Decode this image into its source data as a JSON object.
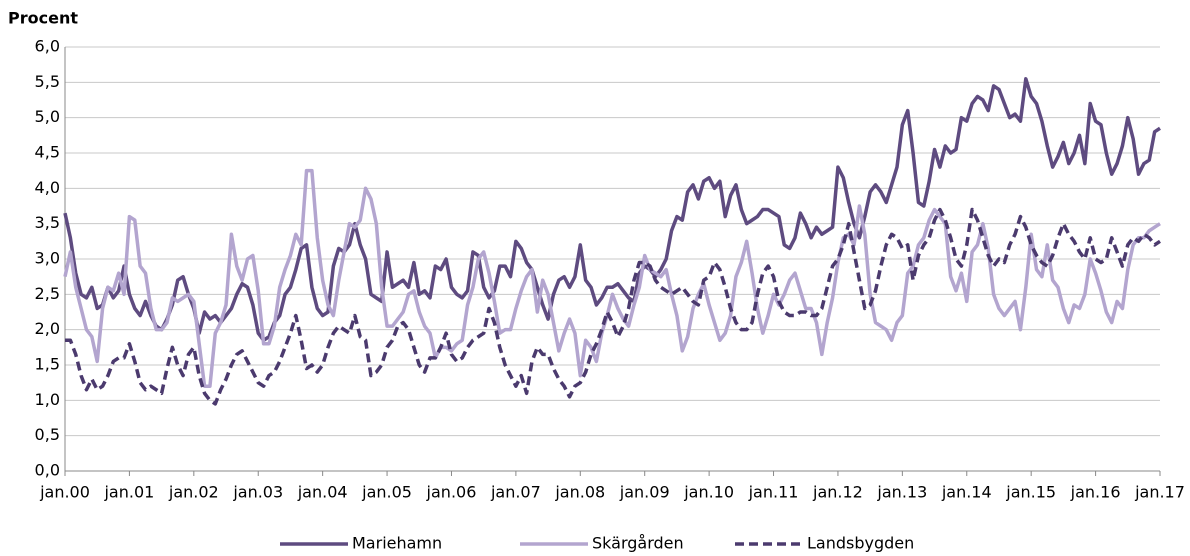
{
  "chart_data": {
    "type": "line",
    "y_axis_label": "Procent",
    "categories": [
      "jan.00",
      null,
      null,
      null,
      null,
      null,
      null,
      null,
      null,
      null,
      null,
      null,
      "jan.01",
      null,
      null,
      null,
      null,
      null,
      null,
      null,
      null,
      null,
      null,
      null,
      "jan.02",
      null,
      null,
      null,
      null,
      null,
      null,
      null,
      null,
      null,
      null,
      null,
      "jan.03",
      null,
      null,
      null,
      null,
      null,
      null,
      null,
      null,
      null,
      null,
      null,
      "jan.04",
      null,
      null,
      null,
      null,
      null,
      null,
      null,
      null,
      null,
      null,
      null,
      "jan.05",
      null,
      null,
      null,
      null,
      null,
      null,
      null,
      null,
      null,
      null,
      null,
      "jan.06",
      null,
      null,
      null,
      null,
      null,
      null,
      null,
      null,
      null,
      null,
      null,
      "jan.07",
      null,
      null,
      null,
      null,
      null,
      null,
      null,
      null,
      null,
      null,
      null,
      "jan.08",
      null,
      null,
      null,
      null,
      null,
      null,
      null,
      null,
      null,
      null,
      null,
      "jan.09",
      null,
      null,
      null,
      null,
      null,
      null,
      null,
      null,
      null,
      null,
      null,
      "jan.10",
      null,
      null,
      null,
      null,
      null,
      null,
      null,
      null,
      null,
      null,
      null,
      "jan.11",
      null,
      null,
      null,
      null,
      null,
      null,
      null,
      null,
      null,
      null,
      null,
      "jan.12",
      null,
      null,
      null,
      null,
      null,
      null,
      null,
      null,
      null,
      null,
      null,
      "jan.13",
      null,
      null,
      null,
      null,
      null,
      null,
      null,
      null,
      null,
      null,
      null,
      "jan.14",
      null,
      null,
      null,
      null,
      null,
      null,
      null,
      null,
      null,
      null,
      null,
      "jan.15",
      null,
      null,
      null,
      null,
      null,
      null,
      null,
      null,
      null,
      null,
      null,
      "jan.16",
      null,
      null,
      null,
      null,
      null,
      null,
      null,
      null,
      null,
      null,
      null,
      "jan.17"
    ],
    "series": [
      {
        "name": "Mariehamn",
        "color": "#5e4b80",
        "line_style": "solid",
        "values": [
          3.65,
          3.3,
          2.8,
          2.5,
          2.45,
          2.6,
          2.3,
          2.35,
          2.6,
          2.45,
          2.55,
          2.9,
          2.5,
          2.3,
          2.2,
          2.4,
          2.2,
          2.05,
          2.0,
          2.15,
          2.35,
          2.7,
          2.75,
          2.5,
          2.3,
          1.95,
          2.25,
          2.15,
          2.2,
          2.1,
          2.2,
          2.3,
          2.5,
          2.65,
          2.6,
          2.35,
          1.95,
          1.85,
          1.9,
          2.1,
          2.2,
          2.5,
          2.6,
          2.85,
          3.15,
          3.2,
          2.6,
          2.3,
          2.2,
          2.25,
          2.9,
          3.15,
          3.1,
          3.2,
          3.5,
          3.2,
          3.0,
          2.5,
          2.45,
          2.4,
          3.1,
          2.6,
          2.65,
          2.7,
          2.6,
          2.95,
          2.5,
          2.55,
          2.45,
          2.9,
          2.85,
          3.0,
          2.6,
          2.5,
          2.45,
          2.55,
          3.1,
          3.05,
          2.6,
          2.45,
          2.55,
          2.9,
          2.9,
          2.75,
          3.25,
          3.15,
          2.95,
          2.85,
          2.6,
          2.35,
          2.15,
          2.5,
          2.7,
          2.75,
          2.6,
          2.75,
          3.2,
          2.7,
          2.6,
          2.35,
          2.45,
          2.6,
          2.6,
          2.65,
          2.55,
          2.45,
          2.4,
          2.8,
          2.9,
          2.85,
          2.75,
          2.85,
          3.0,
          3.4,
          3.6,
          3.55,
          3.95,
          4.05,
          3.85,
          4.1,
          4.15,
          4.0,
          4.1,
          3.6,
          3.9,
          4.05,
          3.7,
          3.5,
          3.55,
          3.6,
          3.7,
          3.7,
          3.65,
          3.6,
          3.2,
          3.15,
          3.3,
          3.65,
          3.5,
          3.3,
          3.45,
          3.35,
          3.4,
          3.45,
          4.3,
          4.15,
          3.8,
          3.5,
          3.3,
          3.6,
          3.95,
          4.05,
          3.95,
          3.8,
          4.05,
          4.3,
          4.9,
          5.1,
          4.5,
          3.8,
          3.75,
          4.1,
          4.55,
          4.3,
          4.6,
          4.5,
          4.55,
          5.0,
          4.95,
          5.2,
          5.3,
          5.25,
          5.1,
          5.45,
          5.4,
          5.2,
          5.0,
          5.05,
          4.95,
          5.55,
          5.3,
          5.2,
          4.95,
          4.6,
          4.3,
          4.45,
          4.65,
          4.35,
          4.5,
          4.75,
          4.35,
          5.2,
          4.95,
          4.9,
          4.5,
          4.2,
          4.35,
          4.6,
          5.0,
          4.7,
          4.2,
          4.35,
          4.4,
          4.8,
          4.85
        ]
      },
      {
        "name": "Skärgården",
        "color": "#b3a5cf",
        "line_style": "solid",
        "values": [
          2.75,
          3.1,
          2.6,
          2.3,
          2.0,
          1.9,
          1.55,
          2.3,
          2.6,
          2.55,
          2.8,
          2.5,
          3.6,
          3.55,
          2.9,
          2.8,
          2.3,
          2.0,
          2.0,
          2.1,
          2.45,
          2.4,
          2.45,
          2.5,
          2.4,
          1.8,
          1.2,
          1.2,
          1.95,
          2.1,
          2.35,
          3.35,
          2.9,
          2.7,
          3.0,
          3.05,
          2.55,
          1.8,
          1.8,
          2.05,
          2.6,
          2.85,
          3.05,
          3.35,
          3.2,
          4.25,
          4.25,
          3.3,
          2.7,
          2.35,
          2.2,
          2.7,
          3.1,
          3.5,
          3.45,
          3.55,
          4.0,
          3.85,
          3.5,
          2.6,
          2.05,
          2.05,
          2.15,
          2.25,
          2.5,
          2.55,
          2.25,
          2.05,
          1.95,
          1.6,
          1.75,
          1.75,
          1.7,
          1.8,
          1.85,
          2.35,
          2.6,
          3.0,
          3.1,
          2.8,
          2.4,
          1.95,
          2.0,
          2.0,
          2.3,
          2.55,
          2.75,
          2.85,
          2.25,
          2.7,
          2.5,
          2.1,
          1.7,
          1.95,
          2.15,
          1.95,
          1.35,
          1.85,
          1.75,
          1.55,
          1.95,
          2.2,
          2.5,
          2.3,
          2.15,
          2.05,
          2.35,
          2.6,
          3.05,
          2.85,
          2.8,
          2.75,
          2.85,
          2.5,
          2.2,
          1.7,
          1.9,
          2.3,
          2.5,
          2.65,
          2.35,
          2.1,
          1.85,
          1.95,
          2.2,
          2.75,
          2.95,
          3.25,
          2.8,
          2.3,
          1.95,
          2.2,
          2.5,
          2.35,
          2.5,
          2.7,
          2.8,
          2.55,
          2.3,
          2.3,
          2.1,
          1.65,
          2.1,
          2.45,
          2.95,
          3.3,
          3.35,
          3.2,
          3.75,
          3.35,
          2.5,
          2.1,
          2.05,
          2.0,
          1.85,
          2.1,
          2.2,
          2.8,
          2.9,
          3.2,
          3.3,
          3.55,
          3.7,
          3.6,
          3.5,
          2.75,
          2.55,
          2.8,
          2.4,
          3.1,
          3.2,
          3.5,
          3.15,
          2.5,
          2.3,
          2.2,
          2.3,
          2.4,
          2.0,
          2.6,
          3.35,
          2.85,
          2.75,
          3.2,
          2.7,
          2.6,
          2.3,
          2.1,
          2.35,
          2.3,
          2.5,
          3.0,
          2.8,
          2.55,
          2.25,
          2.1,
          2.4,
          2.3,
          2.85,
          3.2,
          3.3,
          3.3,
          3.4,
          3.45,
          3.5
        ]
      },
      {
        "name": "Landsbygden",
        "color": "#4b3a6e",
        "line_style": "dashed",
        "values": [
          1.85,
          1.85,
          1.65,
          1.35,
          1.15,
          1.3,
          1.15,
          1.2,
          1.35,
          1.55,
          1.6,
          1.6,
          1.8,
          1.55,
          1.25,
          1.15,
          1.2,
          1.15,
          1.1,
          1.45,
          1.75,
          1.5,
          1.35,
          1.65,
          1.75,
          1.35,
          1.1,
          1.0,
          0.95,
          1.15,
          1.3,
          1.5,
          1.65,
          1.7,
          1.55,
          1.4,
          1.25,
          1.2,
          1.35,
          1.4,
          1.55,
          1.75,
          1.95,
          2.2,
          1.85,
          1.45,
          1.5,
          1.4,
          1.5,
          1.75,
          1.95,
          2.05,
          2.0,
          1.95,
          2.2,
          1.9,
          1.85,
          1.35,
          1.4,
          1.5,
          1.75,
          1.85,
          2.05,
          2.1,
          2.0,
          1.75,
          1.5,
          1.4,
          1.6,
          1.6,
          1.75,
          1.95,
          1.65,
          1.55,
          1.6,
          1.75,
          1.85,
          1.9,
          1.95,
          2.3,
          2.1,
          1.75,
          1.5,
          1.35,
          1.2,
          1.35,
          1.1,
          1.55,
          1.75,
          1.65,
          1.65,
          1.45,
          1.3,
          1.2,
          1.05,
          1.2,
          1.25,
          1.4,
          1.65,
          1.8,
          2.0,
          2.25,
          2.1,
          1.9,
          2.05,
          2.3,
          2.7,
          2.95,
          2.95,
          2.9,
          2.7,
          2.6,
          2.55,
          2.5,
          2.55,
          2.6,
          2.5,
          2.4,
          2.35,
          2.7,
          2.75,
          2.95,
          2.85,
          2.6,
          2.3,
          2.1,
          2.0,
          2.0,
          2.1,
          2.5,
          2.8,
          2.9,
          2.75,
          2.4,
          2.25,
          2.2,
          2.2,
          2.25,
          2.25,
          2.2,
          2.2,
          2.3,
          2.6,
          2.9,
          3.0,
          3.2,
          3.5,
          3.1,
          2.7,
          2.3,
          2.35,
          2.55,
          2.9,
          3.2,
          3.35,
          3.3,
          3.15,
          3.2,
          2.7,
          3.05,
          3.2,
          3.3,
          3.55,
          3.7,
          3.55,
          3.3,
          3.0,
          2.9,
          3.2,
          3.7,
          3.55,
          3.3,
          3.05,
          2.9,
          3.0,
          2.95,
          3.2,
          3.35,
          3.6,
          3.45,
          3.2,
          3.05,
          2.95,
          2.9,
          3.05,
          3.3,
          3.5,
          3.35,
          3.25,
          3.1,
          3.0,
          3.3,
          3.0,
          2.95,
          3.0,
          3.3,
          3.1,
          2.9,
          3.2,
          3.3,
          3.25,
          3.35,
          3.3,
          3.2,
          3.25
        ]
      }
    ],
    "ylim": [
      0,
      6
    ],
    "yticks": [
      {
        "value": 0,
        "label": "0,0"
      },
      {
        "value": 0.5,
        "label": "0,5"
      },
      {
        "value": 1,
        "label": "1,0"
      },
      {
        "value": 1.5,
        "label": "1,5"
      },
      {
        "value": 2,
        "label": "2,0"
      },
      {
        "value": 2.5,
        "label": "2,5"
      },
      {
        "value": 3,
        "label": "3,0"
      },
      {
        "value": 3.5,
        "label": "3,5"
      },
      {
        "value": 4,
        "label": "4,0"
      },
      {
        "value": 4.5,
        "label": "4,5"
      },
      {
        "value": 5,
        "label": "5,0"
      },
      {
        "value": 5.5,
        "label": "5,5"
      },
      {
        "value": 6,
        "label": "6,0"
      }
    ],
    "grid": true,
    "legend_position": "bottom"
  }
}
